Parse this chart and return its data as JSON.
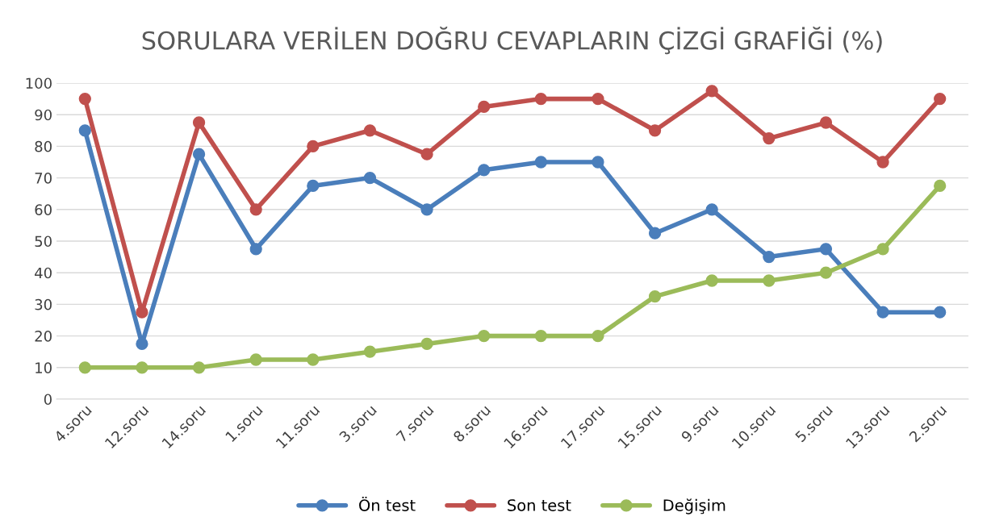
{
  "chart_data": {
    "type": "line",
    "title": "SORULARA VERİLEN DOĞRU CEVAPLARIN ÇİZGİ GRAFİĞİ (%)",
    "categories": [
      "4.soru",
      "12.soru",
      "14.soru",
      "1.soru",
      "11.soru",
      "3.soru",
      "7.soru",
      "8.soru",
      "16.soru",
      "17.soru",
      "15.soru",
      "9.soru",
      "10.soru",
      "5.soru",
      "13.soru",
      "2.soru"
    ],
    "series": [
      {
        "name": "Ön test",
        "color": "#4a7ebb",
        "values": [
          85,
          17.5,
          77.5,
          47.5,
          67.5,
          70,
          60,
          72.5,
          75,
          75,
          52.5,
          60,
          45,
          47.5,
          27.5,
          27.5
        ]
      },
      {
        "name": "Son test",
        "color": "#c0504d",
        "values": [
          95,
          27.5,
          87.5,
          60,
          80,
          85,
          77.5,
          92.5,
          95,
          95,
          85,
          97.5,
          82.5,
          87.5,
          75,
          95
        ]
      },
      {
        "name": "Değişim",
        "color": "#9bbb59",
        "values": [
          10,
          10,
          10,
          12.5,
          12.5,
          15,
          17.5,
          20,
          20,
          20,
          32.5,
          37.5,
          37.5,
          40,
          47.5,
          67.5
        ]
      }
    ],
    "ylim": [
      0,
      100
    ],
    "yticks": [
      0,
      10,
      20,
      30,
      40,
      50,
      60,
      70,
      80,
      90,
      100
    ],
    "grid": "y",
    "legend": "bottom",
    "marker": "circle",
    "line_style": "solid"
  }
}
